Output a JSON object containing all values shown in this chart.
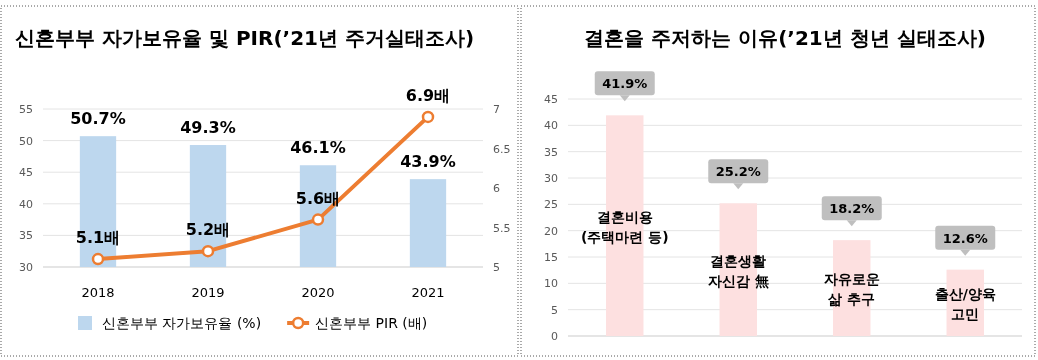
{
  "chart_data": [
    {
      "type": "bar",
      "title": "신혼부부 자가보유율 및 PIR(’21년 주거실태조사)",
      "categories": [
        "2018",
        "2019",
        "2020",
        "2021"
      ],
      "series": [
        {
          "name": "신혼부부 자가보유율 (%)",
          "color": "#bdd7ee",
          "values": [
            50.7,
            49.3,
            46.1,
            43.9
          ],
          "value_labels": [
            "50.7%",
            "49.3%",
            "46.1%",
            "43.9%"
          ]
        },
        {
          "name": "신혼부부 PIR (배)",
          "type": "line",
          "axis": "y2",
          "color": "#ed7d31",
          "marker": "circle",
          "values": [
            5.1,
            5.2,
            5.6,
            6.9
          ],
          "value_labels": [
            "5.1배",
            "5.2배",
            "5.6배",
            "6.9배"
          ]
        }
      ],
      "ylim": [
        30,
        55
      ],
      "yticks": [
        30,
        35,
        40,
        45,
        50,
        55
      ],
      "y2lim": [
        5,
        7
      ],
      "y2ticks": [
        5,
        5.5,
        6,
        6.5,
        7
      ],
      "grid": "y",
      "legend": "bottom"
    },
    {
      "type": "bar",
      "title": "결혼을 주저하는 이유(’21년 청년 실태조사)",
      "categories": [
        "결혼비용\n(주택마련 등)",
        "결혼생활\n자신감 無",
        "자유로운\n삶 추구",
        "출산/양육\n고민"
      ],
      "values": [
        41.9,
        25.2,
        18.2,
        12.6
      ],
      "color": "#fde0e0",
      "value_labels": [
        "41.9%",
        "25.2%",
        "18.2%",
        "12.6%"
      ],
      "ylim": [
        0,
        45
      ],
      "yticks": [
        0,
        5,
        10,
        15,
        20,
        25,
        30,
        35,
        40,
        45
      ],
      "grid": "y"
    }
  ]
}
